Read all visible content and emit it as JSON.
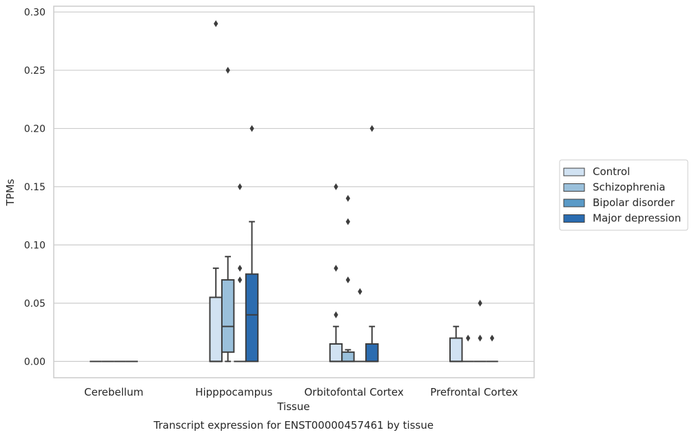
{
  "chart_data": {
    "type": "boxplot",
    "caption": "Transcript expression for ENST00000457461 by tissue",
    "xlabel": "Tissue",
    "ylabel": "TPMs",
    "ylim": [
      -0.014,
      0.305
    ],
    "yticks": [
      0.0,
      0.05,
      0.1,
      0.15,
      0.2,
      0.25,
      0.3
    ],
    "ytick_labels": [
      "0.00",
      "0.05",
      "0.10",
      "0.15",
      "0.20",
      "0.25",
      "0.30"
    ],
    "grid": "horizontal",
    "legend_position": "right",
    "categories": [
      "Cerebellum",
      "Hipppocampus",
      "Orbitofontal Cortex",
      "Prefrontal Cortex"
    ],
    "series": [
      {
        "name": "Control",
        "color": "#d1e2f2",
        "boxes": [
          {
            "min": 0,
            "q1": 0,
            "median": 0,
            "q3": 0,
            "max": 0,
            "outliers": []
          },
          {
            "min": 0,
            "q1": 0,
            "median": 0,
            "q3": 0.055,
            "max": 0.08,
            "outliers": [
              0.29
            ]
          },
          {
            "min": 0,
            "q1": 0,
            "median": 0,
            "q3": 0.015,
            "max": 0.03,
            "outliers": [
              0.04,
              0.08,
              0.15
            ]
          },
          {
            "min": 0,
            "q1": 0,
            "median": 0,
            "q3": 0.02,
            "max": 0.03,
            "outliers": []
          }
        ]
      },
      {
        "name": "Schizophrenia",
        "color": "#9ac0db",
        "boxes": [
          {
            "min": 0,
            "q1": 0,
            "median": 0,
            "q3": 0,
            "max": 0,
            "outliers": []
          },
          {
            "min": 0,
            "q1": 0.008,
            "median": 0.03,
            "q3": 0.07,
            "max": 0.09,
            "outliers": [
              0.25
            ]
          },
          {
            "min": 0,
            "q1": 0,
            "median": 0,
            "q3": 0.008,
            "max": 0.01,
            "outliers": [
              0.07,
              0.12,
              0.14
            ]
          },
          {
            "min": 0,
            "q1": 0,
            "median": 0,
            "q3": 0,
            "max": 0,
            "outliers": [
              0.02
            ]
          }
        ]
      },
      {
        "name": "Bipolar disorder",
        "color": "#5a9ac7",
        "boxes": [
          {
            "min": 0,
            "q1": 0,
            "median": 0,
            "q3": 0,
            "max": 0,
            "outliers": []
          },
          {
            "min": 0,
            "q1": 0,
            "median": 0,
            "q3": 0,
            "max": 0,
            "outliers": [
              0.07,
              0.08,
              0.15
            ]
          },
          {
            "min": 0,
            "q1": 0,
            "median": 0,
            "q3": 0,
            "max": 0,
            "outliers": [
              0.06
            ]
          },
          {
            "min": 0,
            "q1": 0,
            "median": 0,
            "q3": 0,
            "max": 0,
            "outliers": [
              0.02,
              0.05
            ]
          }
        ]
      },
      {
        "name": "Major depression",
        "color": "#2b6cb0",
        "boxes": [
          {
            "min": 0,
            "q1": 0,
            "median": 0,
            "q3": 0,
            "max": 0,
            "outliers": []
          },
          {
            "min": 0,
            "q1": 0,
            "median": 0.04,
            "q3": 0.075,
            "max": 0.12,
            "outliers": [
              0.2
            ]
          },
          {
            "min": 0,
            "q1": 0,
            "median": 0,
            "q3": 0.015,
            "max": 0.03,
            "outliers": [
              0.2
            ]
          },
          {
            "min": 0,
            "q1": 0,
            "median": 0,
            "q3": 0,
            "max": 0,
            "outliers": [
              0.02
            ]
          }
        ]
      }
    ]
  }
}
